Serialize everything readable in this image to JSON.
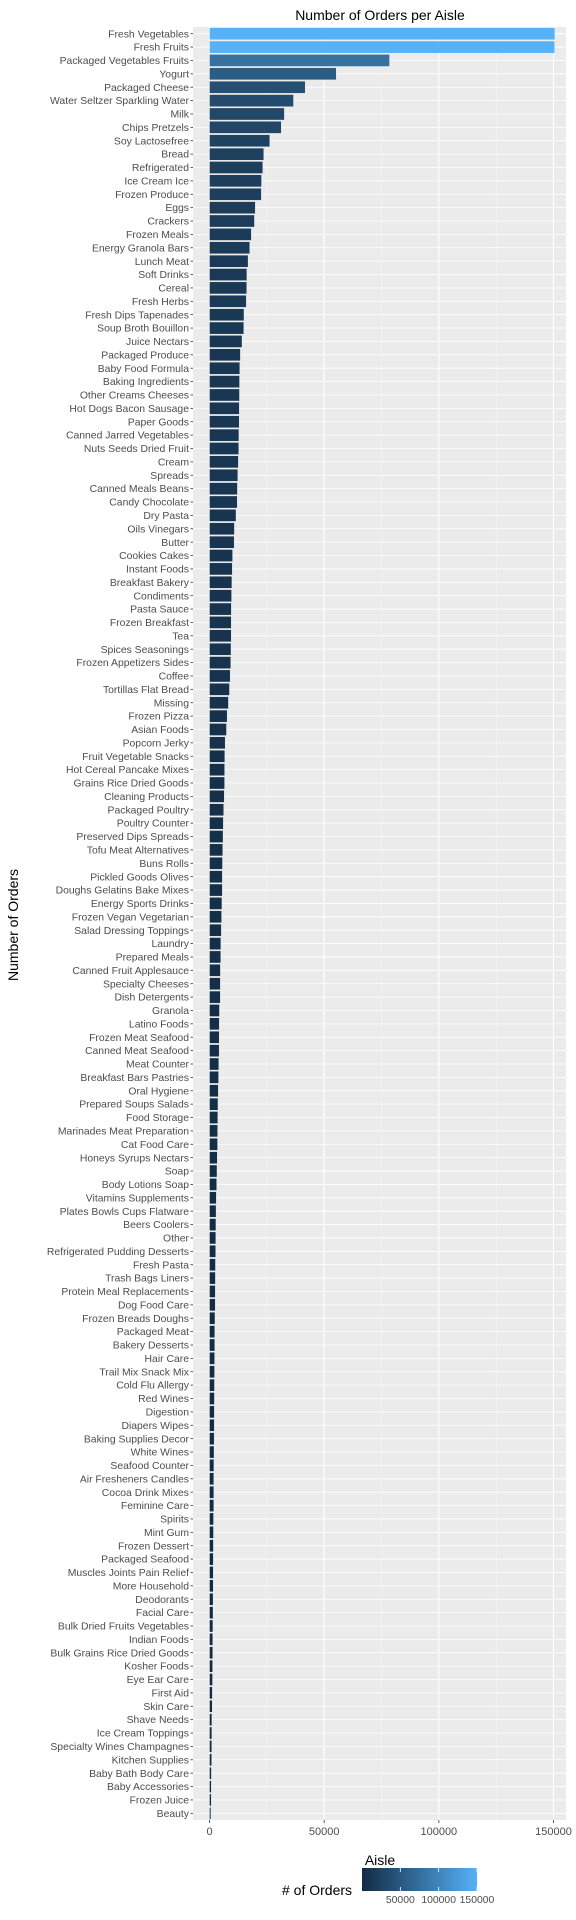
{
  "chart_data": {
    "type": "bar",
    "orientation": "horizontal",
    "title": "Number of Orders per Aisle",
    "xlabel": "Aisle",
    "ylabel": "Number of Orders",
    "xlim": [
      0,
      160000
    ],
    "xticks": [
      0,
      50000,
      100000,
      150000
    ],
    "xtick_labels": [
      "0",
      "50000",
      "100000",
      "150000"
    ],
    "grid": true,
    "legend": {
      "title": "# of Orders",
      "position": "bottom",
      "tick_labels": [
        "50000",
        "100000",
        "150000"
      ],
      "tick_values": [
        50000,
        100000,
        150000
      ],
      "range": [
        0,
        150000
      ],
      "colors": [
        "#132B43",
        "#56B1F7"
      ]
    },
    "categories": [
      "Fresh Vegetables",
      "Fresh Fruits",
      "Packaged Vegetables Fruits",
      "Yogurt",
      "Packaged Cheese",
      "Water Seltzer Sparkling Water",
      "Milk",
      "Chips Pretzels",
      "Soy Lactosefree",
      "Bread",
      "Refrigerated",
      "Ice Cream Ice",
      "Frozen Produce",
      "Eggs",
      "Crackers",
      "Frozen Meals",
      "Energy Granola Bars",
      "Lunch Meat",
      "Soft Drinks",
      "Cereal",
      "Fresh Herbs",
      "Fresh Dips Tapenades",
      "Soup Broth Bouillon",
      "Juice Nectars",
      "Packaged Produce",
      "Baby Food Formula",
      "Baking Ingredients",
      "Other Creams Cheeses",
      "Hot Dogs Bacon Sausage",
      "Paper Goods",
      "Canned Jarred Vegetables",
      "Nuts Seeds Dried Fruit",
      "Cream",
      "Spreads",
      "Canned Meals Beans",
      "Candy Chocolate",
      "Dry Pasta",
      "Oils Vinegars",
      "Butter",
      "Cookies Cakes",
      "Instant Foods",
      "Breakfast Bakery",
      "Condiments",
      "Pasta Sauce",
      "Frozen Breakfast",
      "Tea",
      "Spices Seasonings",
      "Frozen Appetizers Sides",
      "Coffee",
      "Tortillas Flat Bread",
      "Missing",
      "Frozen Pizza",
      "Asian Foods",
      "Popcorn Jerky",
      "Fruit Vegetable Snacks",
      "Hot Cereal Pancake Mixes",
      "Grains Rice Dried Goods",
      "Cleaning Products",
      "Packaged Poultry",
      "Poultry Counter",
      "Preserved Dips Spreads",
      "Tofu Meat Alternatives",
      "Buns Rolls",
      "Pickled Goods Olives",
      "Doughs Gelatins Bake Mixes",
      "Energy Sports Drinks",
      "Frozen Vegan Vegetarian",
      "Salad Dressing Toppings",
      "Laundry",
      "Prepared Meals",
      "Canned Fruit Applesauce",
      "Specialty Cheeses",
      "Dish Detergents",
      "Granola",
      "Latino Foods",
      "Frozen Meat Seafood",
      "Canned Meat Seafood",
      "Meat Counter",
      "Breakfast Bars Pastries",
      "Oral Hygiene",
      "Prepared Soups Salads",
      "Food Storage",
      "Marinades Meat Preparation",
      "Cat Food Care",
      "Honeys Syrups Nectars",
      "Soap",
      "Body Lotions Soap",
      "Vitamins Supplements",
      "Plates Bowls Cups Flatware",
      "Beers Coolers",
      "Other",
      "Refrigerated Pudding Desserts",
      "Fresh Pasta",
      "Trash Bags Liners",
      "Protein Meal Replacements",
      "Dog Food Care",
      "Frozen Breads Doughs",
      "Packaged Meat",
      "Bakery Desserts",
      "Hair Care",
      "Trail Mix Snack Mix",
      "Cold Flu Allergy",
      "Red Wines",
      "Digestion",
      "Diapers Wipes",
      "Baking Supplies Decor",
      "White Wines",
      "Seafood Counter",
      "Air Fresheners Candles",
      "Cocoa Drink Mixes",
      "Feminine Care",
      "Spirits",
      "Mint Gum",
      "Frozen Dessert",
      "Packaged Seafood",
      "Muscles Joints Pain Relief",
      "More Household",
      "Deodorants",
      "Facial Care",
      "Bulk Dried Fruits Vegetables",
      "Indian Foods",
      "Bulk Grains Rice Dried Goods",
      "Kosher Foods",
      "Eye Ear Care",
      "First Aid",
      "Skin Care",
      "Shave Needs",
      "Ice Cream Toppings",
      "Specialty Wines Champagnes",
      "Kitchen Supplies",
      "Baby Bath Body Care",
      "Baby Accessories",
      "Frozen Juice",
      "Beauty"
    ],
    "values": [
      150609,
      150473,
      78493,
      55240,
      41699,
      36617,
      32644,
      31269,
      26240,
      23635,
      23228,
      22676,
      22583,
      19943,
      19592,
      18221,
      17506,
      16805,
      16300,
      16201,
      16029,
      15031,
      14935,
      14165,
      13460,
      13198,
      13088,
      13062,
      12970,
      12917,
      12819,
      12712,
      12582,
      12352,
      12167,
      12070,
      11548,
      10855,
      10727,
      10052,
      9910,
      9763,
      9612,
      9506,
      9452,
      9434,
      9359,
      9248,
      8992,
      8708,
      8251,
      7677,
      7398,
      6805,
      6653,
      6581,
      6570,
      6421,
      6161,
      6022,
      5892,
      5747,
      5658,
      5586,
      5556,
      5410,
      5255,
      5143,
      4949,
      4888,
      4745,
      4722,
      4697,
      4335,
      4248,
      4197,
      4187,
      4033,
      3942,
      3807,
      3684,
      3641,
      3525,
      3496,
      3344,
      3255,
      3104,
      2953,
      2847,
      2795,
      2744,
      2673,
      2596,
      2567,
      2511,
      2478,
      2383,
      2282,
      2261,
      2220,
      2196,
      2162,
      2136,
      2103,
      2066,
      2007,
      1962,
      1911,
      1858,
      1859,
      1842,
      1750,
      1729,
      1699,
      1648,
      1615,
      1596,
      1549,
      1526,
      1480,
      1393,
      1378,
      1341,
      1313,
      1242,
      1152,
      1031,
      1019,
      941,
      916,
      824,
      752,
      733,
      601
    ]
  }
}
